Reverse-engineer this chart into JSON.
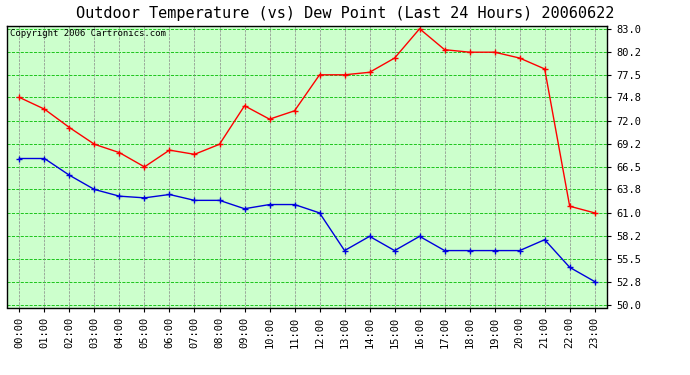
{
  "title": "Outdoor Temperature (vs) Dew Point (Last 24 Hours) 20060622",
  "copyright": "Copyright 2006 Cartronics.com",
  "background_color": "#ffffff",
  "plot_bg_color": "#ccffcc",
  "grid_color": "#00bb00",
  "grid_color2": "#888888",
  "hours": [
    "00:00",
    "01:00",
    "02:00",
    "03:00",
    "04:00",
    "05:00",
    "06:00",
    "07:00",
    "08:00",
    "09:00",
    "10:00",
    "11:00",
    "12:00",
    "13:00",
    "14:00",
    "15:00",
    "16:00",
    "17:00",
    "18:00",
    "19:00",
    "20:00",
    "21:00",
    "22:00",
    "23:00"
  ],
  "temp_red": [
    74.8,
    73.4,
    71.2,
    69.2,
    68.2,
    66.5,
    68.5,
    68.0,
    69.2,
    73.8,
    72.2,
    73.2,
    77.5,
    77.5,
    77.8,
    79.5,
    83.0,
    80.5,
    80.2,
    80.2,
    79.5,
    78.2,
    61.8,
    61.0
  ],
  "dew_blue": [
    67.5,
    67.5,
    65.5,
    63.8,
    63.0,
    62.8,
    63.2,
    62.5,
    62.5,
    61.5,
    62.0,
    62.0,
    61.0,
    56.5,
    58.2,
    56.5,
    58.2,
    56.5,
    56.5,
    56.5,
    56.5,
    57.8,
    54.5,
    52.8
  ],
  "ylim": [
    50.0,
    83.0
  ],
  "yticks": [
    50.0,
    52.8,
    55.5,
    58.2,
    61.0,
    63.8,
    66.5,
    69.2,
    72.0,
    74.8,
    77.5,
    80.2,
    83.0
  ],
  "line_color_red": "#ff0000",
  "line_color_blue": "#0000dd",
  "marker_size": 3,
  "title_fontsize": 11,
  "tick_fontsize": 7.5,
  "copyright_fontsize": 6.5
}
